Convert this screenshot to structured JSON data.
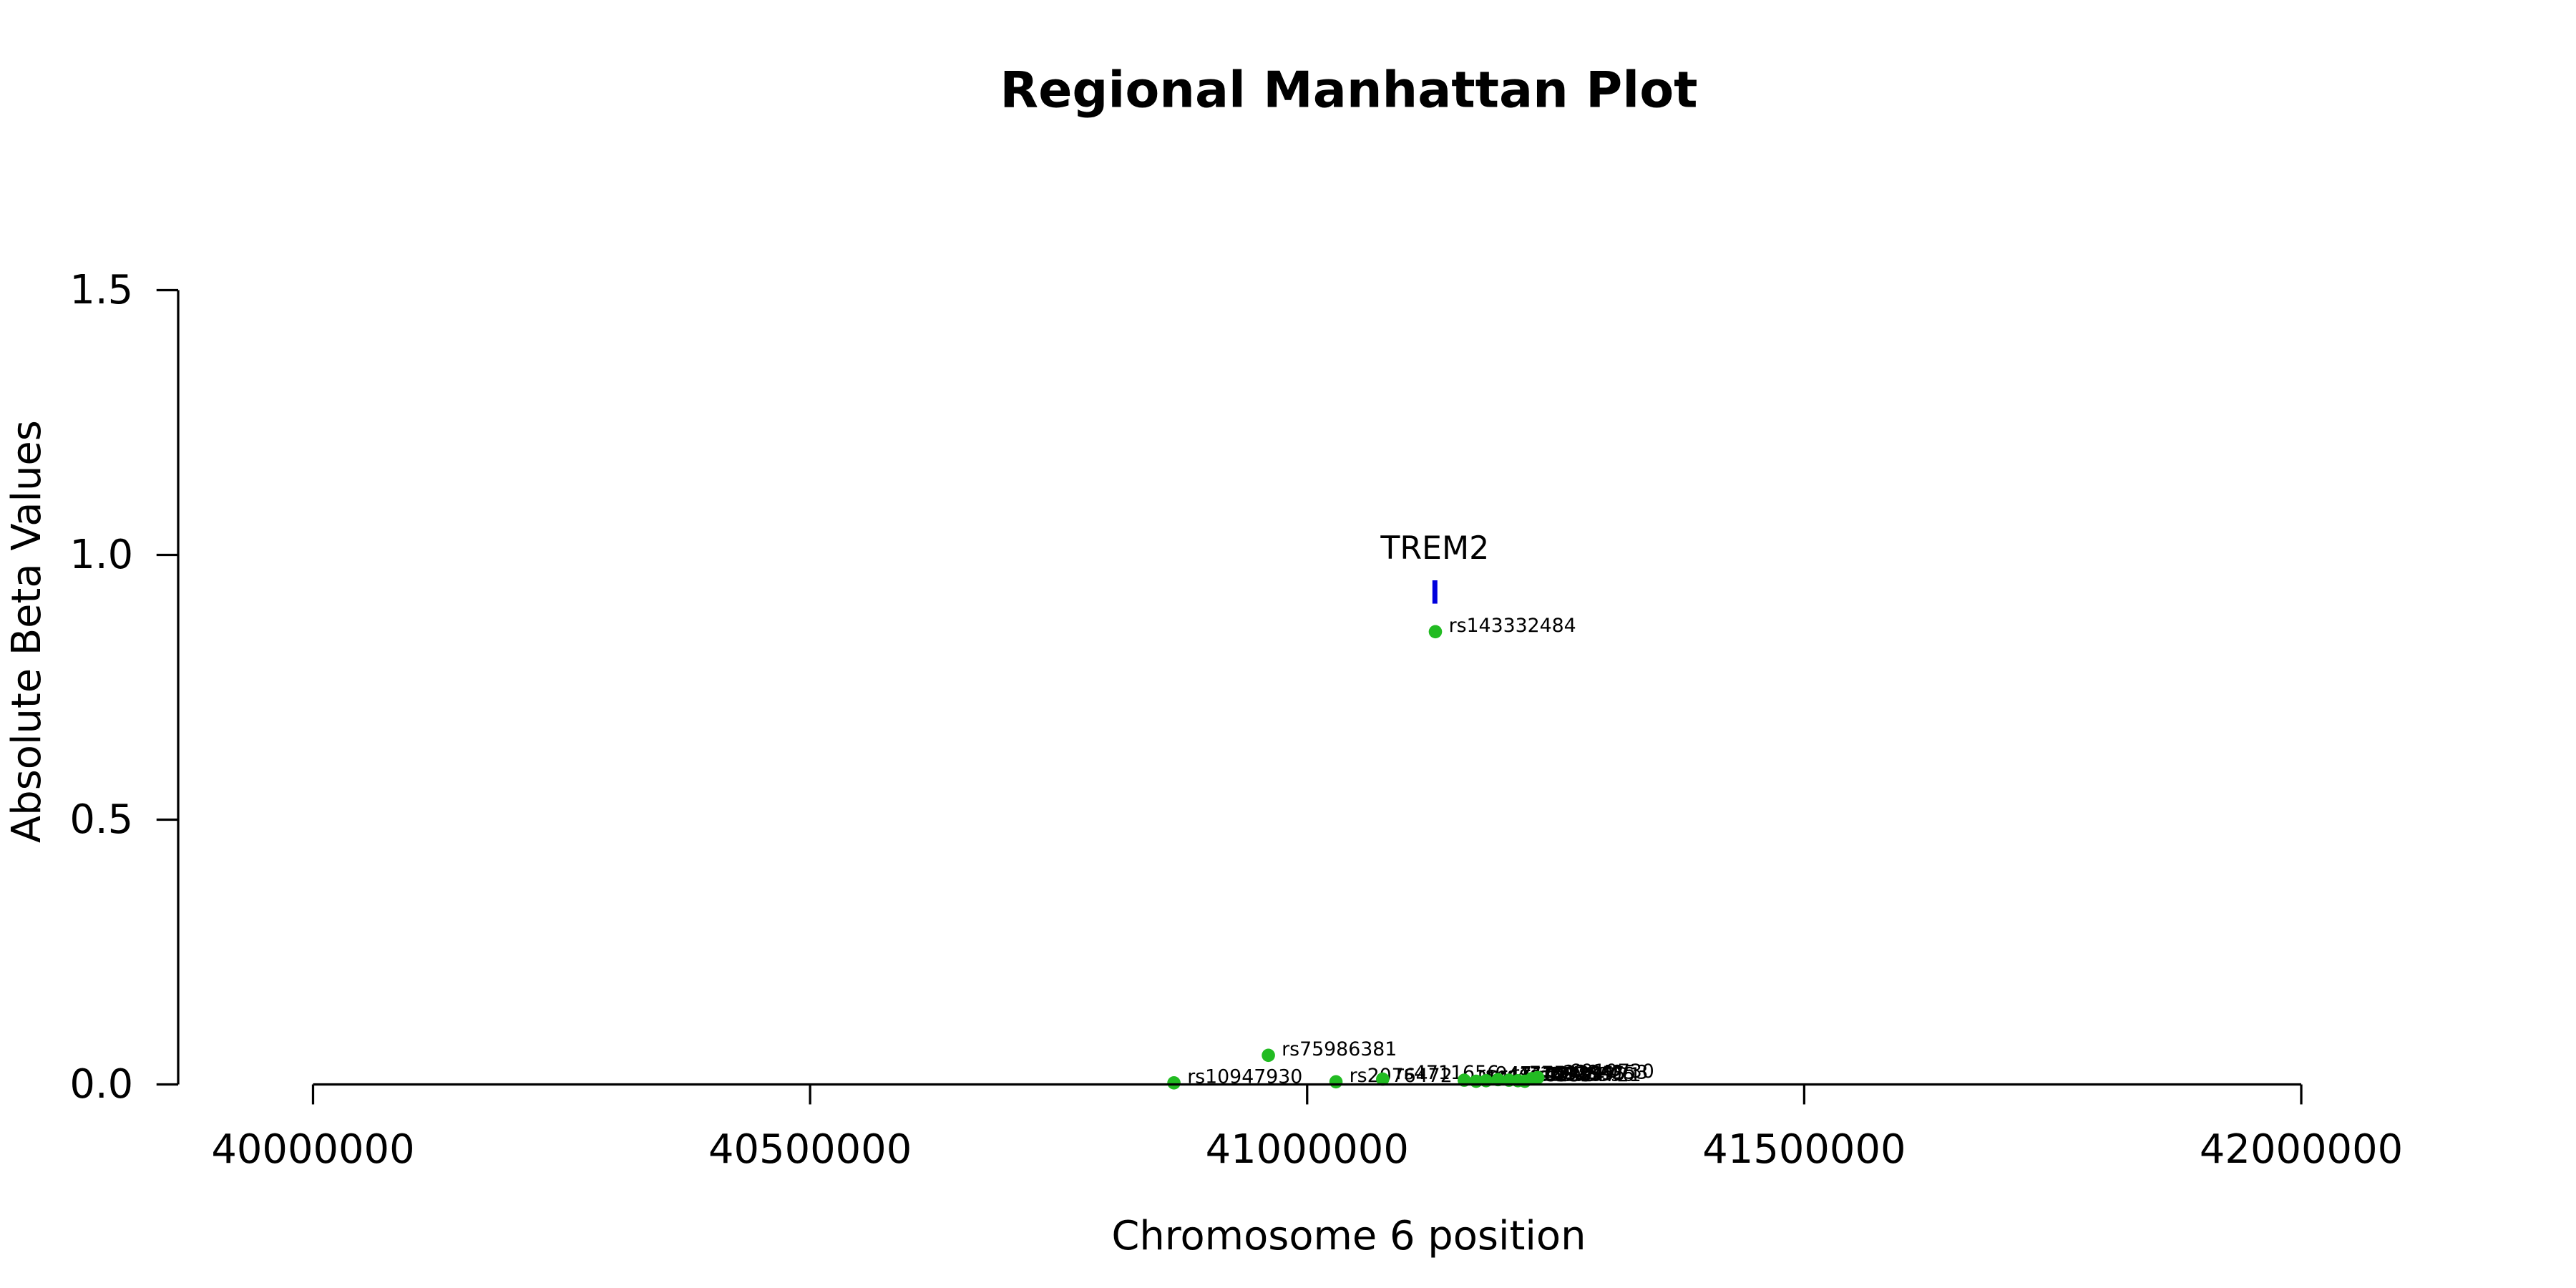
{
  "chart_data": {
    "type": "scatter",
    "title": "Regional Manhattan Plot",
    "xlabel": "Chromosome 6 position",
    "ylabel": "Absolute Beta Values",
    "xlim": [
      40000000,
      42000000
    ],
    "ylim": [
      0,
      1.5
    ],
    "x_ticks": [
      {
        "value": 40000000,
        "label": "40000000"
      },
      {
        "value": 40500000,
        "label": "40500000"
      },
      {
        "value": 41000000,
        "label": "41000000"
      },
      {
        "value": 41500000,
        "label": "41500000"
      },
      {
        "value": 42000000,
        "label": "42000000"
      }
    ],
    "y_ticks": [
      {
        "value": 0.0,
        "label": "0.0"
      },
      {
        "value": 0.5,
        "label": "0.5"
      },
      {
        "value": 1.0,
        "label": "1.0"
      },
      {
        "value": 1.5,
        "label": "1.5"
      }
    ],
    "grid": false,
    "point_color": "#22bb22",
    "gene_color": "#0000dd",
    "genes": [
      {
        "name": "TREM2",
        "start": 41126000,
        "end": 41131000,
        "y": 0.93
      }
    ],
    "points": [
      {
        "label": "rs143332484",
        "x": 41129000,
        "y": 0.855
      },
      {
        "label": "rs75986381",
        "x": 40961000,
        "y": 0.055
      },
      {
        "label": "rs10947930",
        "x": 40866000,
        "y": 0.003
      },
      {
        "label": "rs2076472",
        "x": 41029000,
        "y": 0.005
      },
      {
        "label": "rs4711656",
        "x": 41076000,
        "y": 0.01
      },
      {
        "label": "rs9471084",
        "x": 41158000,
        "y": 0.008
      },
      {
        "label": "rs4714282",
        "x": 41170000,
        "y": 0.006
      },
      {
        "label": "rs4714283",
        "x": 41180000,
        "y": 0.007
      },
      {
        "label": "rs7759295",
        "x": 41192000,
        "y": 0.009
      },
      {
        "label": "rs2093395",
        "x": 41203000,
        "y": 0.008
      },
      {
        "label": "rs2093396",
        "x": 41212000,
        "y": 0.007
      },
      {
        "label": "rs9394721",
        "x": 41219000,
        "y": 0.006
      },
      {
        "label": "rs2234253",
        "x": 41226000,
        "y": 0.011
      },
      {
        "label": "rs6910730",
        "x": 41232000,
        "y": 0.013
      }
    ]
  }
}
